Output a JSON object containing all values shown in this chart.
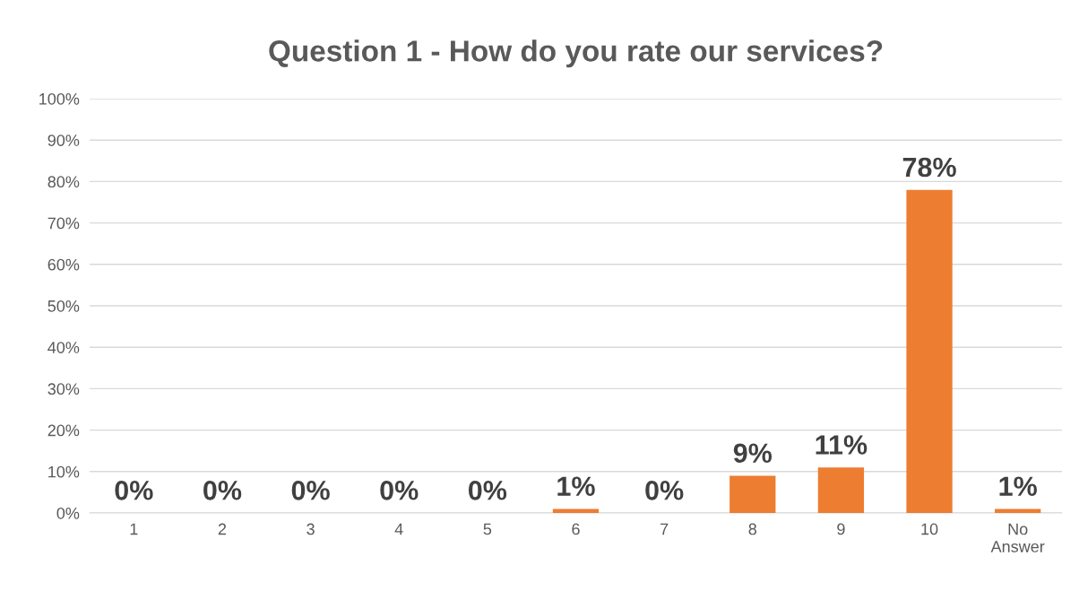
{
  "chart_data": {
    "type": "bar",
    "title": "Question 1 - How do you rate our services?",
    "categories": [
      "1",
      "2",
      "3",
      "4",
      "5",
      "6",
      "7",
      "8",
      "9",
      "10",
      "No\nAnswer"
    ],
    "values": [
      0,
      0,
      0,
      0,
      0,
      1,
      0,
      9,
      11,
      78,
      1
    ],
    "value_labels": [
      "0%",
      "0%",
      "0%",
      "0%",
      "0%",
      "1%",
      "0%",
      "9%",
      "11%",
      "78%",
      "1%"
    ],
    "color": "#ed7d31",
    "ylim": [
      0,
      100
    ],
    "yticks": [
      {
        "value": 0,
        "label": "0%"
      },
      {
        "value": 10,
        "label": "10%"
      },
      {
        "value": 20,
        "label": "20%"
      },
      {
        "value": 30,
        "label": "30%"
      },
      {
        "value": 40,
        "label": "40%"
      },
      {
        "value": 50,
        "label": "50%"
      },
      {
        "value": 60,
        "label": "60%"
      },
      {
        "value": 70,
        "label": "70%"
      },
      {
        "value": 80,
        "label": "80%"
      },
      {
        "value": 90,
        "label": "90%"
      },
      {
        "value": 100,
        "label": "100%"
      }
    ],
    "grid": "y",
    "legend": false
  }
}
